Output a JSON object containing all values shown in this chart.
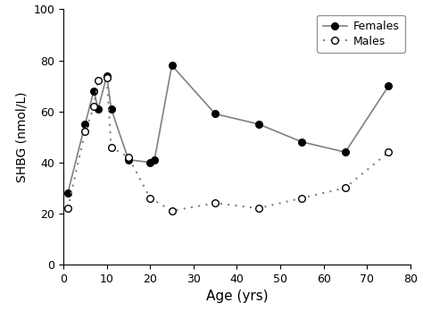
{
  "females_x": [
    1,
    5,
    7,
    8,
    10,
    11,
    15,
    20,
    21,
    25,
    35,
    45,
    55,
    65,
    75
  ],
  "females_y": [
    28,
    55,
    68,
    61,
    74,
    61,
    41,
    40,
    41,
    78,
    59,
    55,
    48,
    44,
    70
  ],
  "males_x": [
    1,
    5,
    7,
    8,
    10,
    11,
    15,
    20,
    25,
    35,
    45,
    55,
    65,
    75
  ],
  "males_y": [
    22,
    52,
    62,
    72,
    73,
    46,
    42,
    26,
    21,
    24,
    22,
    26,
    30,
    44
  ],
  "xlabel": "Age (yrs)",
  "ylabel": "SHBG (nmol/L)",
  "xlim": [
    0,
    80
  ],
  "ylim": [
    0,
    100
  ],
  "xticks": [
    0,
    10,
    20,
    30,
    40,
    50,
    60,
    70,
    80
  ],
  "yticks": [
    0,
    20,
    40,
    60,
    80,
    100
  ],
  "legend_females": "Females",
  "legend_males": "Males",
  "line_color": "#808080",
  "marker_color_filled": "#000000",
  "marker_color_open": "#000000",
  "background_color": "#ffffff"
}
